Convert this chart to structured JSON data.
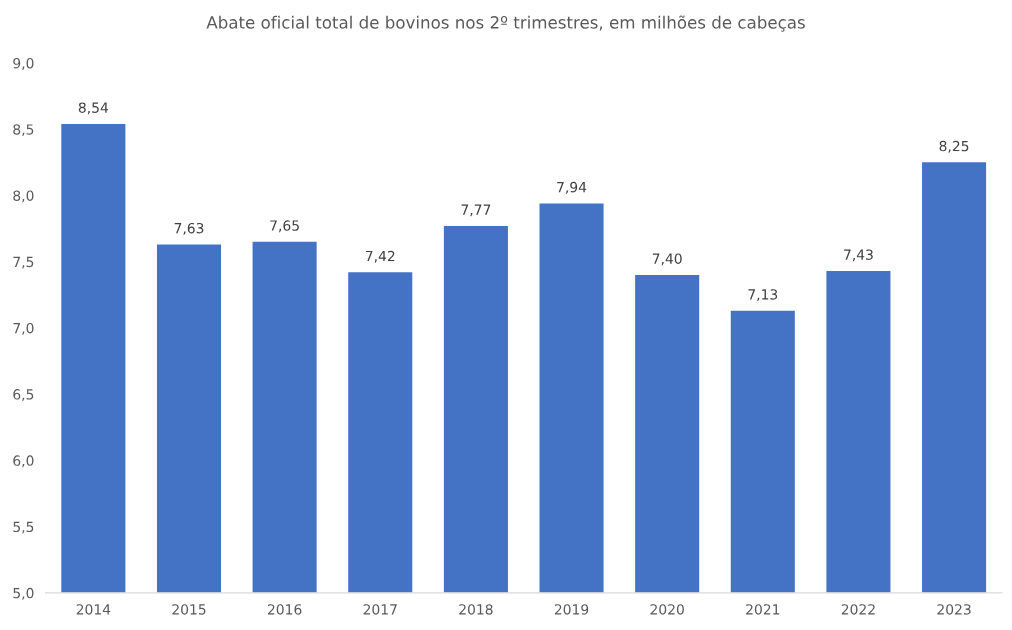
{
  "chart_data": {
    "type": "bar",
    "title": "Abate oficial total de bovinos nos 2º trimestres, em milhões de cabeças",
    "categories": [
      "2014",
      "2015",
      "2016",
      "2017",
      "2018",
      "2019",
      "2020",
      "2021",
      "2022",
      "2023"
    ],
    "values": [
      8.54,
      7.63,
      7.65,
      7.42,
      7.77,
      7.94,
      7.4,
      7.13,
      7.43,
      8.25
    ],
    "value_labels": [
      "8,54",
      "7,63",
      "7,65",
      "7,42",
      "7,77",
      "7,94",
      "7,40",
      "7,13",
      "7,43",
      "8,25"
    ],
    "color": "#4472c4",
    "ylim": [
      5.0,
      9.0
    ],
    "yticks": [
      {
        "value": 5.0,
        "label": "5,0"
      },
      {
        "value": 5.5,
        "label": "5,5"
      },
      {
        "value": 6.0,
        "label": "6,0"
      },
      {
        "value": 6.5,
        "label": "6,5"
      },
      {
        "value": 7.0,
        "label": "7,0"
      },
      {
        "value": 7.5,
        "label": "7,5"
      },
      {
        "value": 8.0,
        "label": "8,0"
      },
      {
        "value": 8.5,
        "label": "8,5"
      },
      {
        "value": 9.0,
        "label": "9,0"
      }
    ],
    "grid": false
  }
}
